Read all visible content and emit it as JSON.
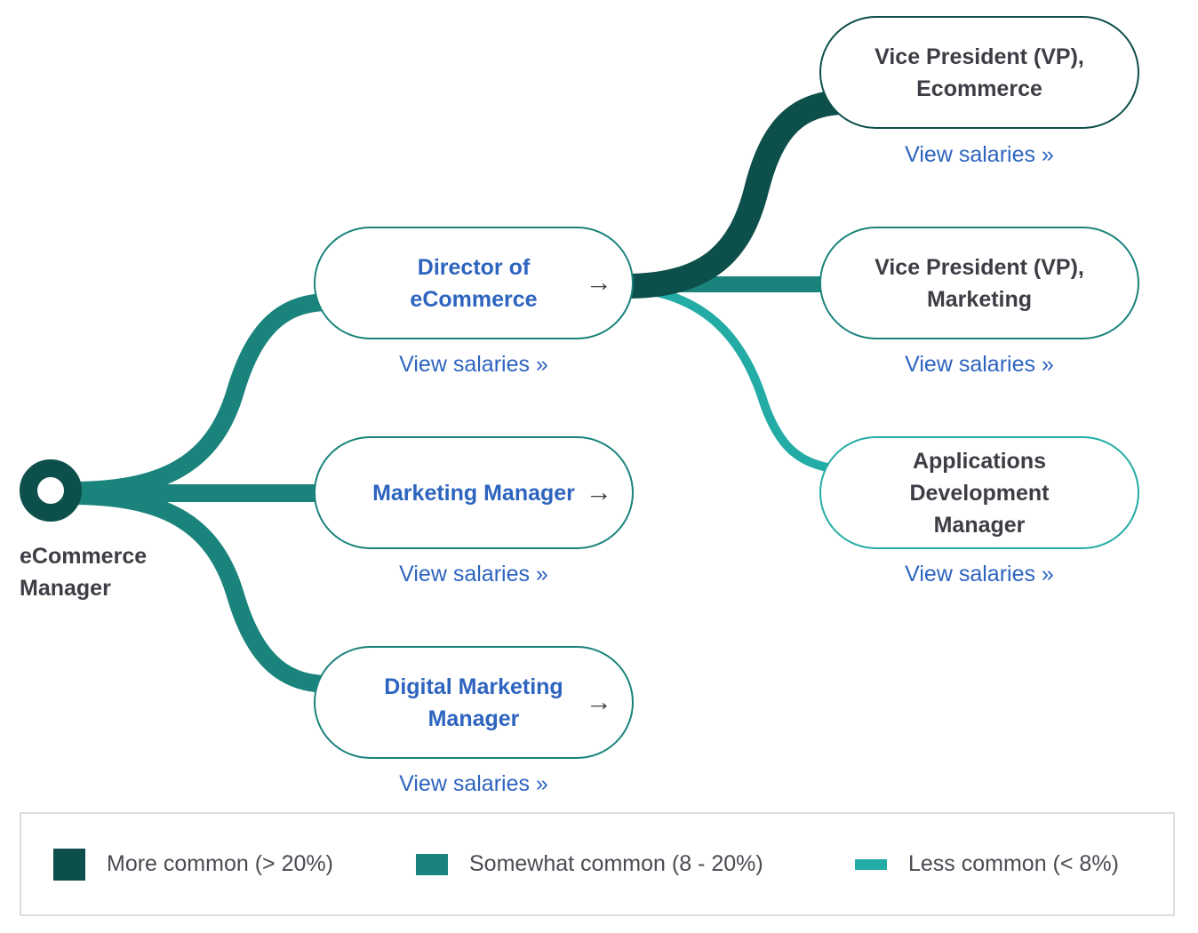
{
  "colors": {
    "more_common": "#0d4f4a",
    "somewhat_common": "#1a837b",
    "less_common": "#23aca5",
    "link": "#2d64bf"
  },
  "root": {
    "label": "eCommerce Manager"
  },
  "level1": [
    {
      "title": "Director of eCommerce",
      "link": "View salaries »",
      "icon": "arrow-right-icon",
      "frequency": "somewhat_common"
    },
    {
      "title": "Marketing Manager",
      "link": "View salaries »",
      "icon": "arrow-right-icon",
      "frequency": "somewhat_common"
    },
    {
      "title": "Digital Marketing Manager",
      "link": "View salaries »",
      "icon": "arrow-right-icon",
      "frequency": "somewhat_common"
    }
  ],
  "level2": [
    {
      "title": "Vice President (VP), Ecommerce",
      "link": "View salaries »",
      "frequency": "more_common"
    },
    {
      "title": "Vice President (VP), Marketing",
      "link": "View salaries »",
      "frequency": "somewhat_common"
    },
    {
      "title": "Applications Development Manager",
      "link": "View salaries »",
      "frequency": "less_common"
    }
  ],
  "legend": [
    {
      "label": "More common (> 20%)"
    },
    {
      "label": "Somewhat common (8 - 20%)"
    },
    {
      "label": "Less common (< 8%)"
    }
  ]
}
